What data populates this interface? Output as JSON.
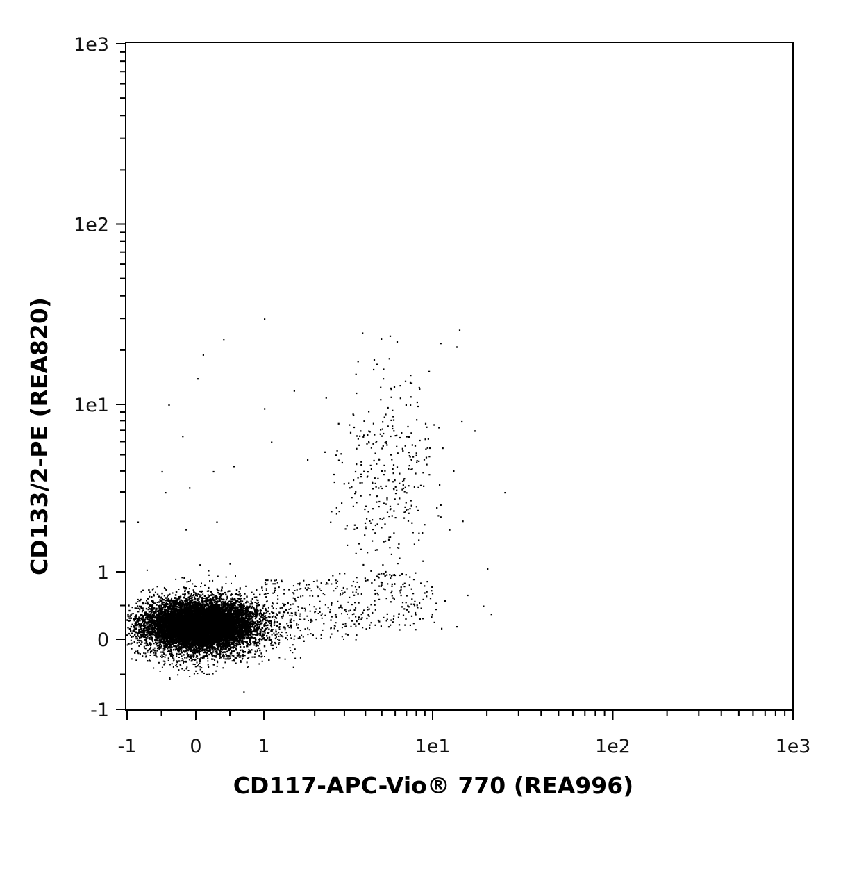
{
  "chart_data": {
    "type": "scatter",
    "title": "",
    "xlabel": "CD117-APC-Vio® 770 (REA996)",
    "ylabel": "CD133/2-PE (REA820)",
    "xscale": "biexponential",
    "yscale": "biexponential",
    "xlim": [
      -1,
      1000
    ],
    "ylim": [
      -1,
      1000
    ],
    "x_ticks": [
      {
        "value": -1,
        "label": "-1"
      },
      {
        "value": 0,
        "label": "0"
      },
      {
        "value": 1,
        "label": "1"
      },
      {
        "value": 10,
        "label": "1e1"
      },
      {
        "value": 100,
        "label": "1e2"
      },
      {
        "value": 1000,
        "label": "1e3"
      }
    ],
    "y_ticks": [
      {
        "value": -1,
        "label": "-1"
      },
      {
        "value": 0,
        "label": "0"
      },
      {
        "value": 1,
        "label": "1"
      },
      {
        "value": 10,
        "label": "1e1"
      },
      {
        "value": 100,
        "label": "1e2"
      },
      {
        "value": 1000,
        "label": "1e3"
      }
    ],
    "grid": false,
    "legend": "none",
    "point_color": "#000000",
    "populations": [
      {
        "description_x_center": 0.1,
        "description_y_center": 0.2,
        "x_range": [
          -1,
          1.2
        ],
        "y_range": [
          -0.4,
          0.9
        ],
        "relative_density": "very high"
      },
      {
        "description_x_center": 5.5,
        "description_y_center": 4,
        "x_range": [
          2.2,
          18
        ],
        "y_range": [
          0.0,
          25
        ],
        "relative_density": "sparse"
      }
    ]
  }
}
